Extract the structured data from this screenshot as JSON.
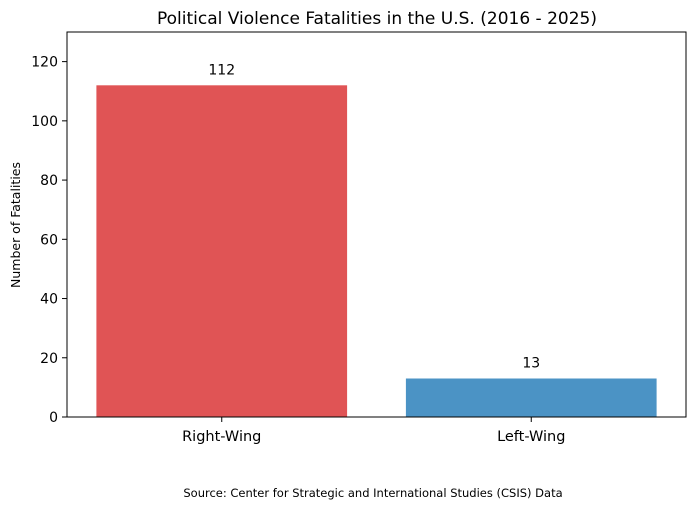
{
  "chart_data": {
    "type": "bar",
    "title": "Political Violence Fatalities in the U.S. (2016 - 2025)",
    "xlabel": "",
    "ylabel": "Number of Fatalities",
    "categories": [
      "Right-Wing",
      "Left-Wing"
    ],
    "values": [
      112,
      13
    ],
    "data_labels": [
      "112",
      "13"
    ],
    "colors": [
      "#e05455",
      "#4b93c5"
    ],
    "ylim": [
      0,
      130
    ],
    "yticks": [
      0,
      20,
      40,
      60,
      80,
      100,
      120
    ],
    "ytick_labels": [
      "0",
      "20",
      "40",
      "60",
      "80",
      "100",
      "120"
    ],
    "grid": false,
    "legend": "none",
    "source": "Source: Center for Strategic and International Studies (CSIS) Data"
  }
}
